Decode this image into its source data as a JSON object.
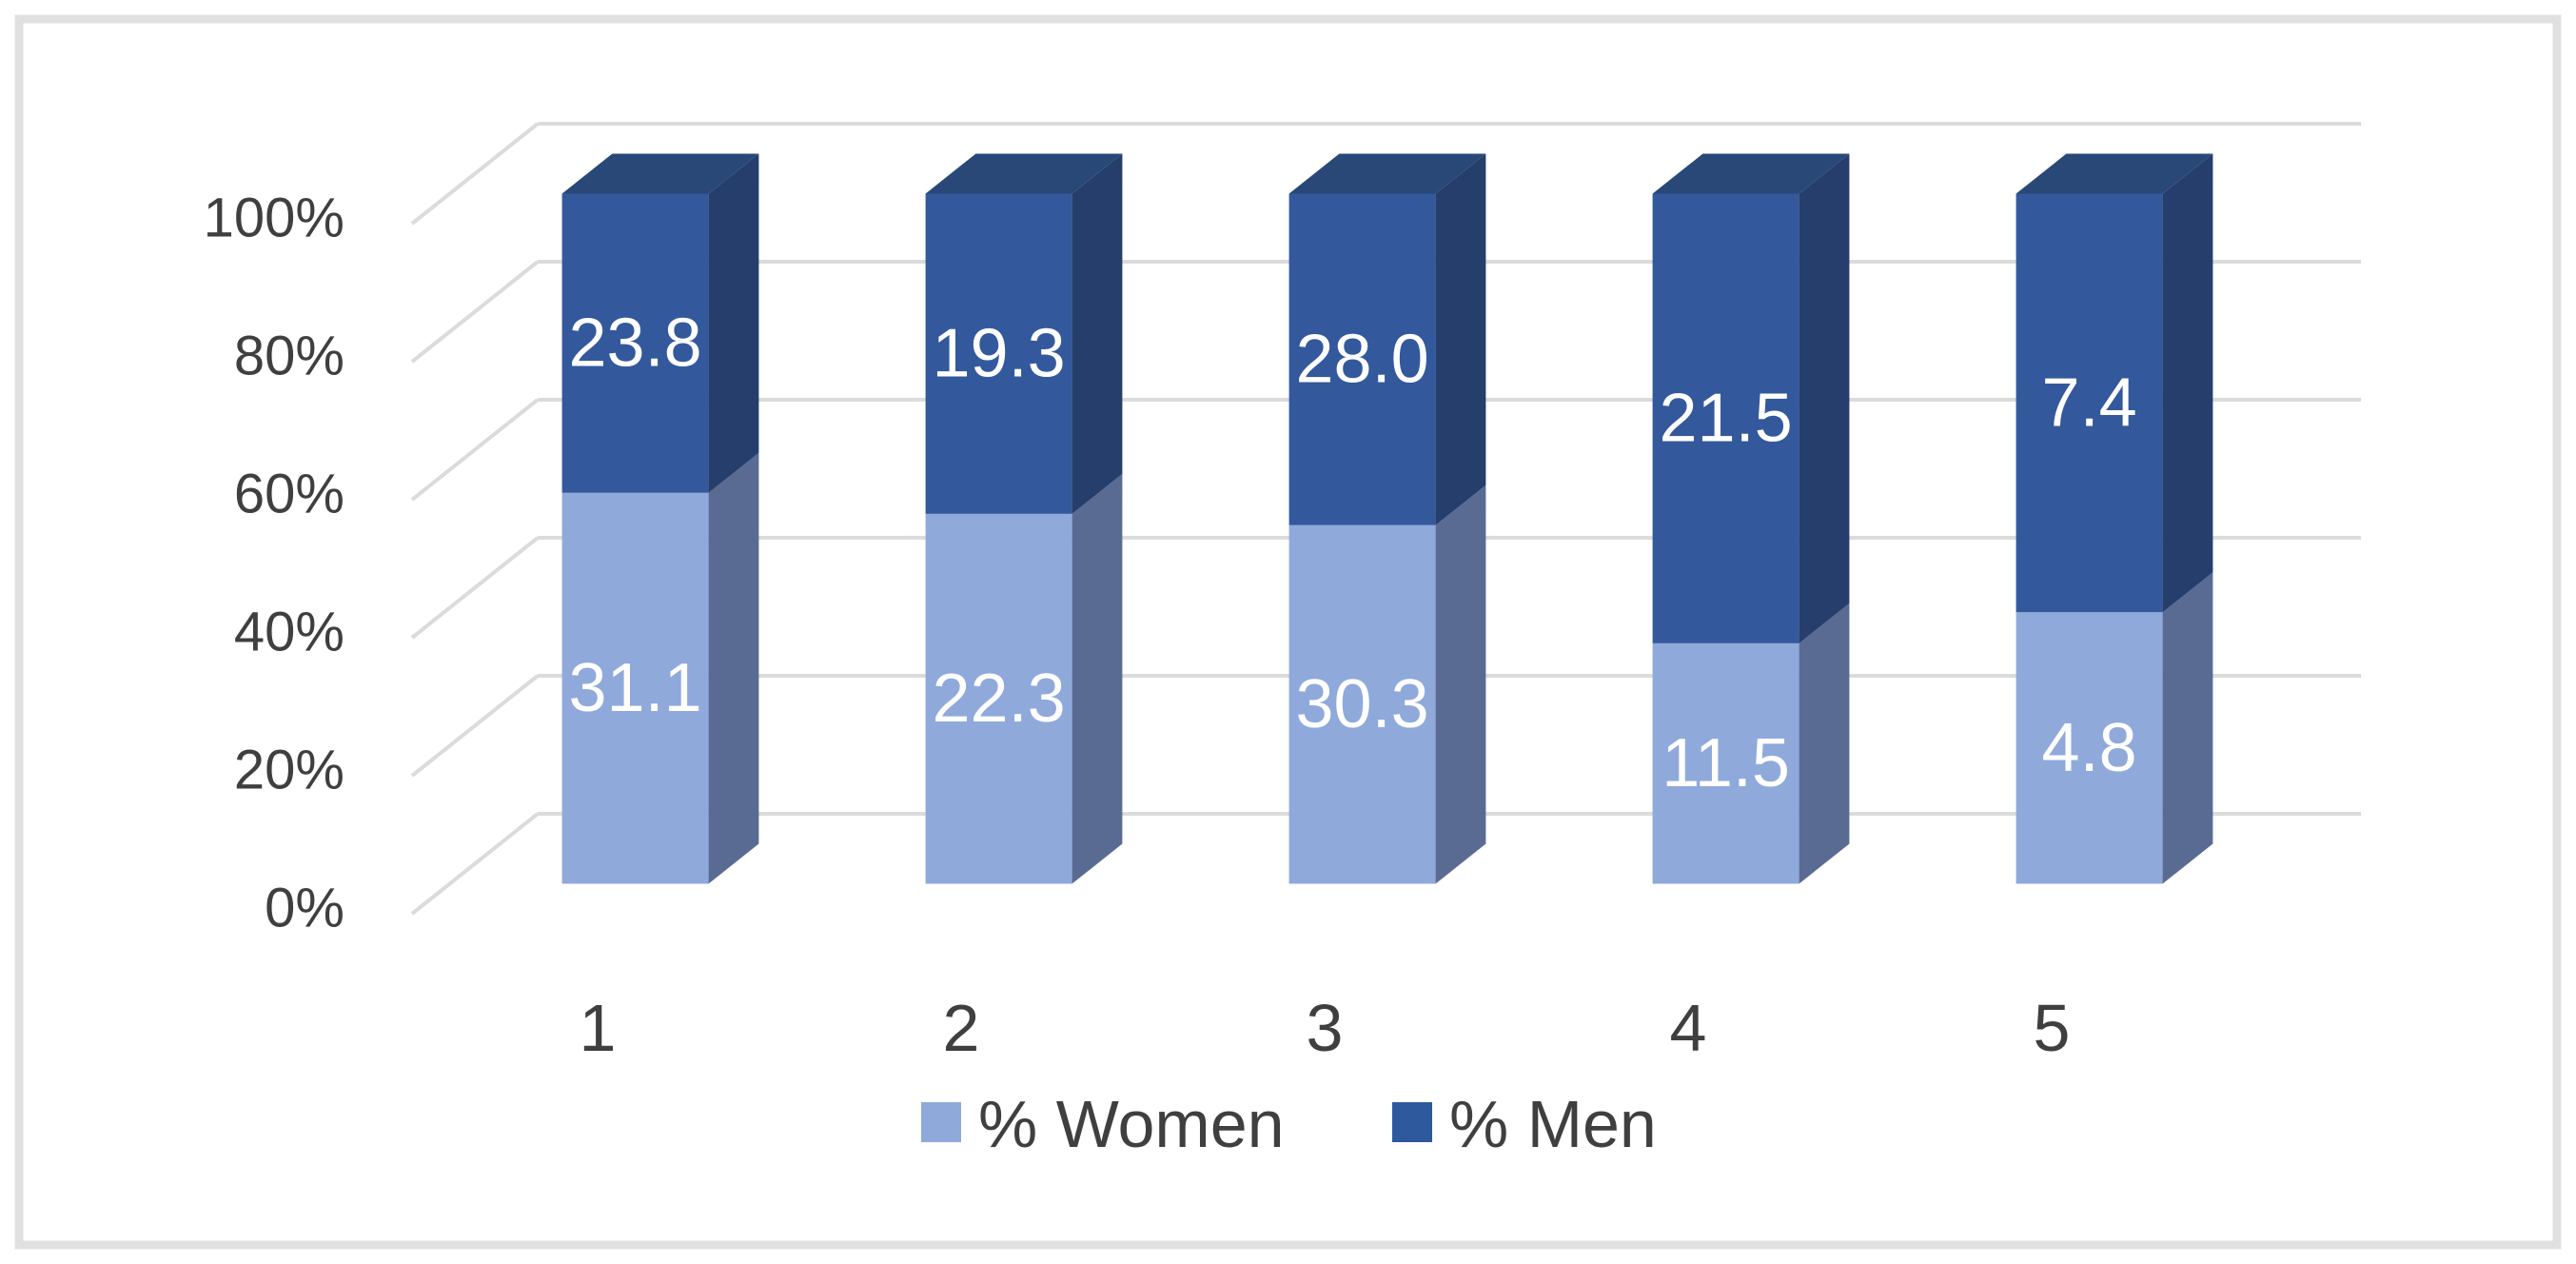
{
  "chart_data": {
    "type": "bar",
    "subtype": "3d-100-percent-stacked-column",
    "title": "",
    "categories": [
      "1",
      "2",
      "3",
      "4",
      "5"
    ],
    "series": [
      {
        "name": "% Women",
        "values": [
          31.1,
          22.3,
          30.3,
          11.5,
          4.8
        ],
        "front_color": "#8FA9DB",
        "side_color": "#5A6B93",
        "top_color": "#7E97C8"
      },
      {
        "name": "% Men",
        "values": [
          23.8,
          19.3,
          28.0,
          21.5,
          7.4
        ],
        "front_color": "#33599C",
        "side_color": "#253E6C",
        "top_color": "#294878"
      }
    ],
    "y_axis": {
      "tick_labels": [
        "0%",
        "20%",
        "40%",
        "60%",
        "80%",
        "100%"
      ],
      "tick_values": [
        0,
        20,
        40,
        60,
        80,
        100
      ],
      "range": [
        0,
        100
      ]
    },
    "x_axis": {
      "tick_labels": [
        "1",
        "2",
        "3",
        "4",
        "5"
      ]
    },
    "legend": {
      "position": "bottom",
      "entries": [
        {
          "label": "% Women",
          "color": "#8FA9DB"
        },
        {
          "label": "% Men",
          "color": "#2E599D"
        }
      ]
    },
    "value_labels": {
      "color": "#FFFFFF",
      "decimals": 1
    },
    "grid": true,
    "gridline_color": "#DBDBDB",
    "axis_text_color": "#3F3F3F",
    "frame_border_color": "#E0E0E0",
    "background_color": "#FFFFFF"
  }
}
